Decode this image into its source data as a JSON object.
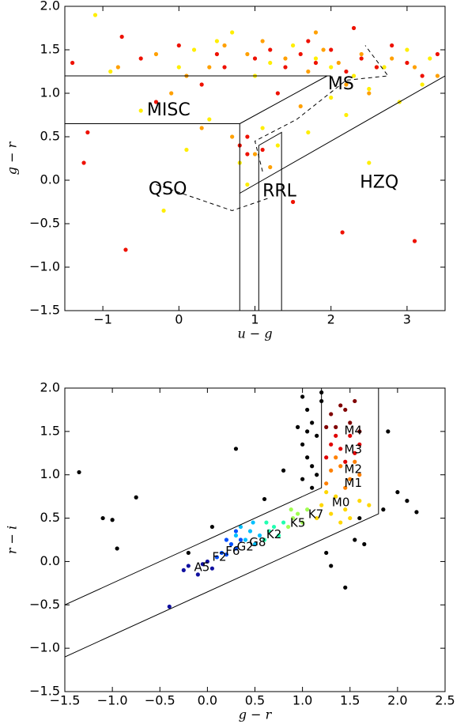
{
  "chart_data": [
    {
      "type": "scatter",
      "xlabel": "u − g",
      "ylabel": "g − r",
      "xlim": [
        -1.5,
        3.5
      ],
      "ylim": [
        -1.5,
        2.0
      ],
      "xticks": [
        {
          "value": -1,
          "label": "−1"
        },
        0,
        1,
        2,
        3
      ],
      "yticks": [
        {
          "value": -1.5,
          "label": "−1.5"
        },
        {
          "value": -1.0,
          "label": "−1.0"
        },
        {
          "value": -0.5,
          "label": "−0.5"
        },
        {
          "value": 0.0,
          "label": "0.0"
        },
        0.5,
        {
          "value": 1.0,
          "label": "1.0"
        },
        1.5,
        {
          "value": 2.0,
          "label": "2.0"
        }
      ],
      "series": [
        {
          "color": "#ffee00",
          "x": [
            -1.1,
            -0.5,
            0.0,
            0.2,
            0.5,
            0.7,
            0.8,
            1.0,
            1.2,
            1.5,
            1.8,
            2.0,
            2.3,
            2.5,
            2.7,
            3.0,
            3.2,
            2.2,
            2.5,
            1.7,
            0.4,
            -0.2,
            0.9,
            1.3,
            2.9,
            3.3,
            -0.9,
            0.1,
            1.1,
            2.0
          ],
          "values": [
            1.9,
            0.8,
            1.3,
            1.5,
            1.6,
            1.7,
            0.2,
            1.2,
            1.35,
            1.55,
            1.4,
            1.3,
            1.2,
            1.05,
            1.3,
            1.5,
            1.1,
            0.75,
            0.2,
            0.55,
            0.7,
            -0.35,
            -0.05,
            0.4,
            0.9,
            1.4,
            1.25,
            0.35,
            0.6,
            0.95
          ]
        },
        {
          "color": "#ffa000",
          "x": [
            -0.8,
            -0.3,
            0.1,
            0.4,
            0.6,
            0.9,
            1.1,
            1.4,
            1.7,
            1.9,
            2.1,
            2.4,
            2.6,
            2.8,
            3.1,
            3.4,
            0.7,
            1.0,
            1.6,
            2.2,
            0.3,
            1.2,
            2.5,
            -0.1,
            1.8
          ],
          "values": [
            1.3,
            1.45,
            1.2,
            1.3,
            1.55,
            1.45,
            1.6,
            1.4,
            1.25,
            1.5,
            1.35,
            1.45,
            1.3,
            1.4,
            1.3,
            1.2,
            0.5,
            0.3,
            0.85,
            1.1,
            0.6,
            0.15,
            1.0,
            1.0,
            1.7
          ]
        },
        {
          "color": "#ee1100",
          "x": [
            -1.4,
            -1.25,
            -1.2,
            -0.7,
            -0.75,
            -0.5,
            0.0,
            0.3,
            0.5,
            0.8,
            0.9,
            1.0,
            1.2,
            1.4,
            1.6,
            1.8,
            2.0,
            2.2,
            2.4,
            2.6,
            2.8,
            3.0,
            3.2,
            3.4,
            0.9,
            1.1,
            2.15,
            3.1,
            2.3,
            0.6,
            1.3,
            1.7,
            -0.3,
            1.5
          ],
          "values": [
            1.35,
            0.2,
            0.55,
            -0.8,
            1.65,
            1.4,
            1.55,
            1.1,
            1.45,
            0.4,
            0.3,
            1.4,
            1.5,
            1.3,
            1.45,
            1.35,
            1.5,
            1.25,
            1.4,
            1.3,
            1.55,
            1.35,
            1.2,
            1.45,
            0.5,
            0.35,
            -0.6,
            -0.7,
            1.75,
            1.3,
            1.0,
            1.6,
            0.9,
            -0.25
          ]
        }
      ],
      "lines": [
        {
          "style": "solid",
          "x": [
            -1.5,
            2.0
          ],
          "y": [
            1.2,
            1.2
          ]
        },
        {
          "style": "solid",
          "x": [
            -1.5,
            0.8,
            0.8
          ],
          "y": [
            0.65,
            0.65,
            -1.5
          ]
        },
        {
          "style": "solid",
          "x": [
            0.8,
            1.95
          ],
          "y": [
            0.65,
            1.2
          ]
        },
        {
          "style": "solid",
          "x": [
            0.8,
            3.5
          ],
          "y": [
            -0.15,
            1.2
          ]
        },
        {
          "style": "solid",
          "x": [
            1.05,
            1.05,
            1.35,
            1.35
          ],
          "y": [
            -1.5,
            0.4,
            0.55,
            -1.5
          ]
        },
        {
          "style": "dashed",
          "x": [
            -0.3,
            0.7,
            1.2
          ],
          "y": [
            -0.05,
            -0.35,
            -0.2
          ]
        },
        {
          "style": "dashed",
          "x": [
            1.1,
            1.0,
            1.55,
            2.2,
            2.75,
            2.45
          ],
          "y": [
            0.1,
            0.45,
            0.7,
            1.15,
            1.2,
            1.55
          ]
        }
      ],
      "annotations": [
        {
          "text": "MISC",
          "x": -0.42,
          "y": 0.8
        },
        {
          "text": "MS",
          "x": 1.96,
          "y": 1.1
        },
        {
          "text": "QSO",
          "x": -0.4,
          "y": -0.11
        },
        {
          "text": "RRL",
          "x": 1.1,
          "y": -0.13
        },
        {
          "text": "HZQ",
          "x": 2.38,
          "y": -0.03
        }
      ]
    },
    {
      "type": "scatter",
      "xlabel": "g − r",
      "ylabel": "r − i",
      "xlim": [
        -1.5,
        2.5
      ],
      "ylim": [
        -1.5,
        2.0
      ],
      "xticks": [
        {
          "value": -1.5,
          "label": "−1.5"
        },
        {
          "value": -1.0,
          "label": "−1.0"
        },
        {
          "value": -0.5,
          "label": "−0.5"
        },
        {
          "value": 0.0,
          "label": "0.0"
        },
        0.5,
        {
          "value": 1.0,
          "label": "1.0"
        },
        1.5,
        {
          "value": 2.0,
          "label": "2.0"
        },
        2.5
      ],
      "yticks": [
        {
          "value": -1.5,
          "label": "−1.5"
        },
        {
          "value": -1.0,
          "label": "−1.0"
        },
        {
          "value": -0.5,
          "label": "−0.5"
        },
        {
          "value": 0.0,
          "label": "0.0"
        },
        0.5,
        {
          "value": 1.0,
          "label": "1.0"
        },
        1.5,
        {
          "value": 2.0,
          "label": "2.0"
        }
      ],
      "series": [
        {
          "color": "#000000",
          "x": [
            -1.35,
            -1.1,
            -1.0,
            -0.95,
            -0.75,
            -0.2,
            0.05,
            0.3,
            0.6,
            0.8,
            1.0,
            1.05,
            1.1,
            1.15,
            1.0,
            1.05,
            1.1,
            1.2,
            1.15,
            1.3,
            1.55,
            1.65,
            1.9,
            2.0,
            2.1,
            2.2,
            1.45,
            1.6,
            1.85,
            1.2,
            0.95,
            1.05,
            1.0,
            1.1,
            1.25
          ],
          "values": [
            1.03,
            0.5,
            0.48,
            0.15,
            0.74,
            0.1,
            0.4,
            1.3,
            0.72,
            1.05,
            1.9,
            1.75,
            1.6,
            1.45,
            1.35,
            1.2,
            1.1,
            1.95,
            1.0,
            -0.05,
            0.25,
            0.2,
            1.5,
            0.8,
            0.7,
            0.57,
            -0.3,
            0.5,
            0.6,
            1.85,
            1.55,
            1.5,
            0.95,
            0.85,
            0.1
          ]
        },
        {
          "color": "#1010a0",
          "x": [
            -0.4,
            -0.25,
            -0.2,
            -0.1,
            -0.05,
            0.0,
            0.05
          ],
          "values": [
            -0.52,
            -0.1,
            -0.05,
            -0.15,
            -0.03,
            0.0,
            -0.08
          ]
        },
        {
          "color": "#0050ff",
          "x": [
            0.1,
            0.15,
            0.2,
            0.25,
            0.3,
            0.35,
            0.2,
            0.3
          ],
          "values": [
            0.05,
            0.1,
            0.08,
            0.2,
            0.15,
            0.25,
            0.25,
            0.35
          ]
        },
        {
          "color": "#00c0ff",
          "x": [
            0.3,
            0.4,
            0.45,
            0.5,
            0.55,
            0.35,
            0.48
          ],
          "values": [
            0.3,
            0.25,
            0.35,
            0.2,
            0.3,
            0.4,
            0.45
          ]
        },
        {
          "color": "#20ffb0",
          "x": [
            0.6,
            0.65,
            0.7,
            0.75,
            0.8,
            0.62
          ],
          "values": [
            0.25,
            0.35,
            0.4,
            0.3,
            0.45,
            0.45
          ]
        },
        {
          "color": "#a0ff50",
          "x": [
            0.85,
            0.9,
            0.95,
            1.0,
            1.05,
            0.88
          ],
          "values": [
            0.4,
            0.5,
            0.55,
            0.45,
            0.6,
            0.6
          ]
        },
        {
          "color": "#ffd700",
          "x": [
            1.15,
            1.2,
            1.3,
            1.35,
            1.45,
            1.5,
            1.6,
            1.7,
            1.25,
            1.4
          ],
          "values": [
            0.5,
            0.65,
            0.55,
            0.75,
            0.6,
            0.5,
            0.7,
            0.65,
            0.8,
            0.45
          ]
        },
        {
          "color": "#ff8000",
          "x": [
            1.25,
            1.3,
            1.4,
            1.5,
            1.6,
            1.35,
            1.55,
            1.45
          ],
          "values": [
            0.9,
            1.05,
            1.1,
            0.95,
            1.0,
            1.2,
            1.15,
            0.85
          ]
        },
        {
          "color": "#e00000",
          "x": [
            1.25,
            1.3,
            1.4,
            1.5,
            1.6,
            1.35,
            1.55,
            1.45
          ],
          "values": [
            1.2,
            1.35,
            1.3,
            1.45,
            1.35,
            1.45,
            1.25,
            1.15
          ]
        },
        {
          "color": "#800000",
          "x": [
            1.25,
            1.3,
            1.4,
            1.5,
            1.6,
            1.45,
            1.35,
            1.55
          ],
          "values": [
            1.55,
            1.7,
            1.8,
            1.6,
            1.5,
            1.75,
            1.55,
            1.85
          ]
        }
      ],
      "lines": [
        {
          "style": "solid",
          "x": [
            -1.5,
            1.8,
            1.8
          ],
          "y": [
            -1.1,
            0.55,
            2.0
          ]
        },
        {
          "style": "solid",
          "x": [
            -1.5,
            1.2,
            1.2
          ],
          "y": [
            -0.5,
            0.85,
            2.0
          ]
        }
      ],
      "annotations_small": [
        {
          "text": "A5",
          "x": -0.14,
          "y": -0.07
        },
        {
          "text": "F2",
          "x": 0.05,
          "y": 0.05
        },
        {
          "text": "F6",
          "x": 0.19,
          "y": 0.12
        },
        {
          "text": "G2",
          "x": 0.31,
          "y": 0.17
        },
        {
          "text": "G8",
          "x": 0.44,
          "y": 0.22
        },
        {
          "text": "K2",
          "x": 0.62,
          "y": 0.31
        },
        {
          "text": "K5",
          "x": 0.87,
          "y": 0.44
        },
        {
          "text": "K7",
          "x": 1.06,
          "y": 0.54
        },
        {
          "text": "M0",
          "x": 1.31,
          "y": 0.68
        },
        {
          "text": "M1",
          "x": 1.44,
          "y": 0.9
        },
        {
          "text": "M2",
          "x": 1.44,
          "y": 1.06
        },
        {
          "text": "M3",
          "x": 1.44,
          "y": 1.29
        },
        {
          "text": "M4",
          "x": 1.44,
          "y": 1.51
        }
      ]
    }
  ]
}
